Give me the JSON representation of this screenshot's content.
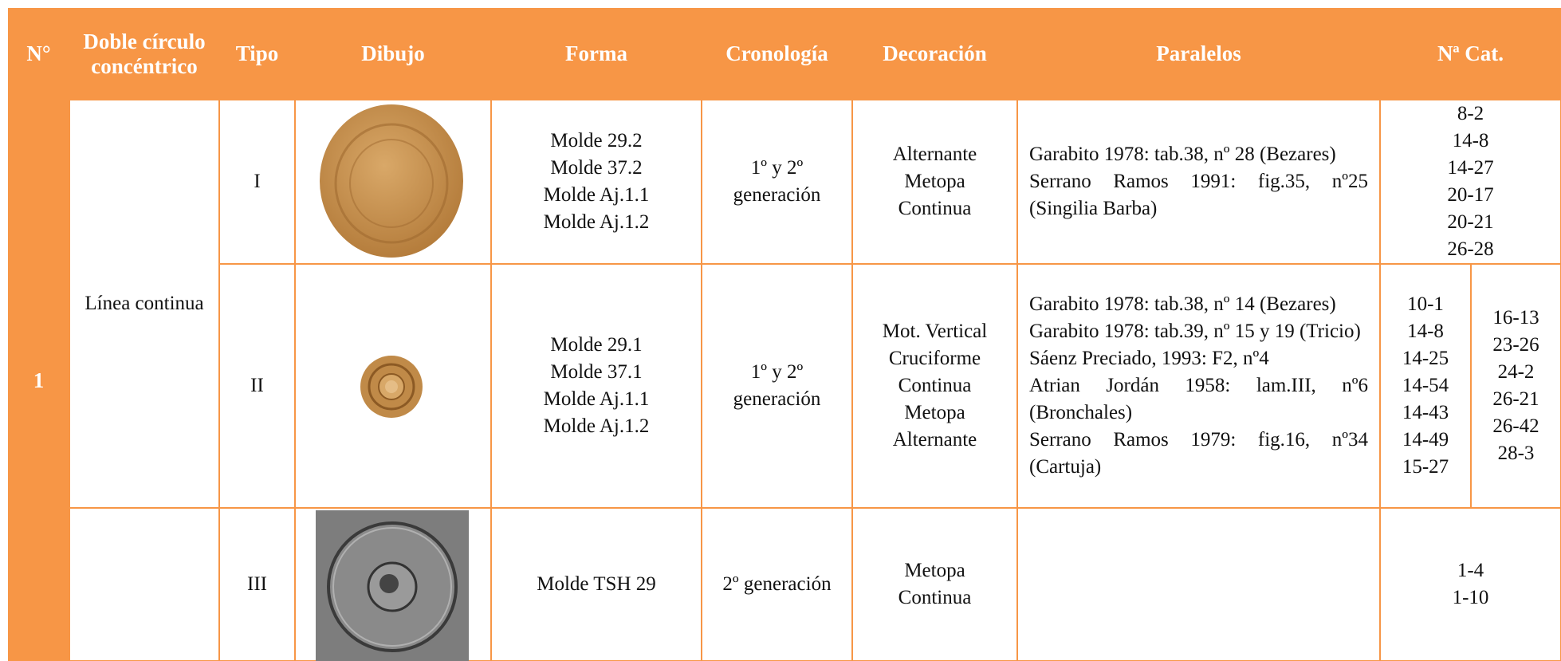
{
  "header": [
    "N°",
    "Doble círculo concéntrico",
    "Tipo",
    "Dibujo",
    "Forma",
    "Cronología",
    "Decoración",
    "Paralelos",
    "Nª Cat."
  ],
  "number": "1",
  "group": "Línea continua",
  "rows": [
    {
      "tipo": "I",
      "forma": [
        "Molde 29.2",
        "Molde  37.2",
        "Molde Aj.1.1",
        "Molde Aj.1.2"
      ],
      "cronologia": [
        "1º y 2º",
        "generación"
      ],
      "decoracion": [
        "Alternante",
        "Metopa",
        "Continua"
      ],
      "paralelos": [
        "Garabito 1978: tab.38, nº 28 (Bezares)",
        "Serrano Ramos 1991: fig.35, nº25 (Singilia Barba)"
      ],
      "cat": [
        "8-2",
        "14-8",
        "14-27",
        "20-17",
        "20-21",
        "26-28"
      ]
    },
    {
      "tipo": "II",
      "forma": [
        "Molde 29.1",
        "Molde 37.1",
        "Molde Aj.1.1",
        "Molde Aj.1.2"
      ],
      "cronologia": [
        "1º y 2º",
        "generación"
      ],
      "decoracion": [
        "Mot. Vertical",
        "Cruciforme",
        "Continua",
        "Metopa",
        "Alternante"
      ],
      "paralelos": [
        "Garabito 1978: tab.38, nº 14 (Bezares)",
        "Garabito 1978: tab.39, nº 15 y 19 (Tricio)",
        "Sáenz Preciado, 1993: F2, nº4",
        "Atrian Jordán 1958: lam.III, nº6 (Bronchales)",
        "Serrano Ramos 1979: fig.16, nº34 (Cartuja)"
      ],
      "cat_left": [
        "10-1",
        "14-8",
        "14-25",
        "14-54",
        "14-43",
        "14-49",
        "15-27"
      ],
      "cat_right": [
        "16-13",
        "23-26",
        "24-2",
        "26-21",
        "26-42",
        "28-3"
      ]
    },
    {
      "tipo": "III",
      "forma": [
        "Molde TSH 29"
      ],
      "cronologia": [
        "2º generación"
      ],
      "decoracion": [
        "Metopa",
        "Continua"
      ],
      "paralelos": [],
      "cat": [
        "1-4",
        "1-10"
      ]
    }
  ]
}
